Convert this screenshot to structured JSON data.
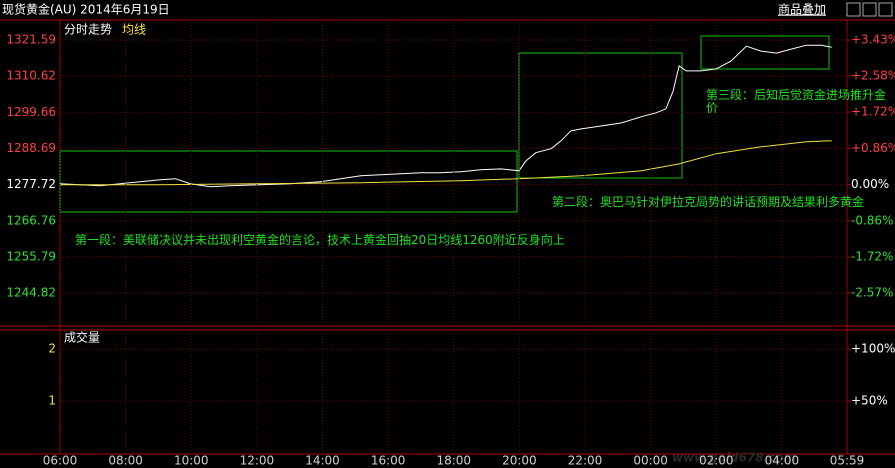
{
  "header": {
    "title": "现货黄金(AU) 2014年6月19日",
    "overlay_button": "商品叠加"
  },
  "watermark": "www.gold678.com",
  "chart_data": [
    {
      "type": "line",
      "xlim": [
        0,
        1439
      ],
      "ylim": [
        1235.15,
        1327.03
      ],
      "yticks": [
        1321.59,
        1310.62,
        1299.66,
        1288.69,
        1277.72,
        1266.76,
        1255.79,
        1244.82
      ],
      "y2lim": [
        -3.332,
        3.859
      ],
      "y2ticks": [
        {
          "value": 3.43,
          "label": "+3.43%"
        },
        {
          "value": 2.58,
          "label": "+2.58%"
        },
        {
          "value": 1.72,
          "label": "+1.72%"
        },
        {
          "value": 0.86,
          "label": "+0.86%"
        },
        {
          "value": 0.0,
          "label": "0.00%"
        },
        {
          "value": -0.86,
          "label": "-0.86%"
        },
        {
          "value": -1.72,
          "label": "-1.72%"
        },
        {
          "value": -2.57,
          "label": "-2.57%"
        }
      ],
      "grid": true,
      "series": [
        {
          "name": "分时走势",
          "color": "#ffffff",
          "x": [
            0,
            37,
            73,
            110,
            147,
            183,
            211,
            238,
            275,
            311,
            366,
            421,
            476,
            513,
            550,
            586,
            623,
            660,
            696,
            733,
            769,
            806,
            839,
            852,
            870,
            898,
            916,
            934,
            953,
            989,
            1026,
            1063,
            1090,
            1108,
            1121,
            1132,
            1145,
            1172,
            1200,
            1227,
            1255,
            1282,
            1310,
            1337,
            1365,
            1392,
            1411
          ],
          "values": [
            1278.0,
            1277.7,
            1277.4,
            1278.0,
            1278.6,
            1279.2,
            1279.5,
            1278.0,
            1277.1,
            1277.4,
            1277.7,
            1278.0,
            1278.6,
            1279.5,
            1280.4,
            1280.7,
            1281.0,
            1281.3,
            1281.3,
            1281.6,
            1282.2,
            1282.5,
            1281.9,
            1284.9,
            1287.4,
            1288.6,
            1291.0,
            1294.0,
            1294.6,
            1295.5,
            1296.4,
            1298.3,
            1299.5,
            1300.7,
            1306.1,
            1313.7,
            1312.2,
            1312.2,
            1312.8,
            1315.2,
            1319.7,
            1318.2,
            1317.6,
            1318.8,
            1320.0,
            1320.0,
            1319.4
          ]
        },
        {
          "name": "均线",
          "color": "#f0e040",
          "x": [
            0,
            183,
            366,
            550,
            733,
            839,
            953,
            1063,
            1132,
            1200,
            1282,
            1365,
            1411
          ],
          "values": [
            1277.7,
            1277.7,
            1278.0,
            1278.3,
            1278.9,
            1279.5,
            1280.4,
            1281.9,
            1284.0,
            1287.1,
            1289.2,
            1290.7,
            1291.0
          ]
        }
      ],
      "annotations": [
        "第一段：美联储决议并未出现利空黄金的言论，技术上黄金回抽20日均线1260附近反身向上",
        "第二段：奥巴马针对伊拉克局势的讲话预期及结果利多黄金",
        "第三段：后知后觉资金进场推升金价"
      ]
    },
    {
      "type": "bar",
      "title": "成交量",
      "xlim": [
        0,
        1439
      ],
      "xticks": [
        {
          "value": 0,
          "label": "06:00"
        },
        {
          "value": 120,
          "label": "08:00"
        },
        {
          "value": 240,
          "label": "10:00"
        },
        {
          "value": 360,
          "label": "12:00"
        },
        {
          "value": 480,
          "label": "14:00"
        },
        {
          "value": 600,
          "label": "16:00"
        },
        {
          "value": 720,
          "label": "18:00"
        },
        {
          "value": 840,
          "label": "20:00"
        },
        {
          "value": 960,
          "label": "22:00"
        },
        {
          "value": 1080,
          "label": "00:00"
        },
        {
          "value": 1200,
          "label": "02:00"
        },
        {
          "value": 1320,
          "label": "04:00"
        },
        {
          "value": 1439,
          "label": "05:59"
        }
      ],
      "ylim": [
        0,
        2.37
      ],
      "yticks": [
        2,
        1
      ],
      "y2lim": [
        0,
        118.5
      ],
      "y2ticks": [
        {
          "value": 100,
          "label": "+100%"
        },
        {
          "value": 50,
          "label": "+50%"
        }
      ],
      "grid": true
    }
  ]
}
